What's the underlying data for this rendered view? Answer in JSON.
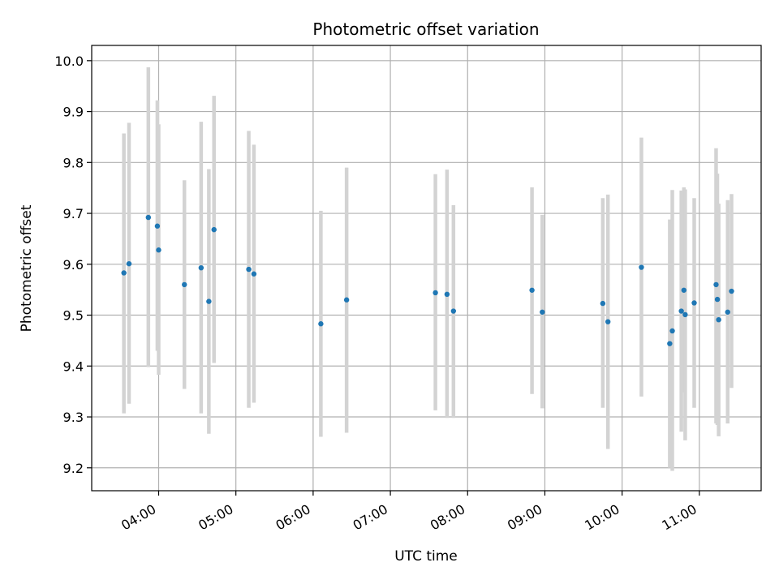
{
  "chart_data": {
    "type": "scatter",
    "title": "Photometric offset variation",
    "xlabel": "UTC time",
    "ylabel": "Photometric offset",
    "xlim": [
      "03:08",
      "11:48"
    ],
    "ylim": [
      9.155,
      10.03
    ],
    "x_ticks": [
      "04:00",
      "05:00",
      "06:00",
      "07:00",
      "08:00",
      "09:00",
      "10:00",
      "11:00"
    ],
    "y_ticks": [
      "9.2",
      "9.3",
      "9.4",
      "9.5",
      "9.6",
      "9.7",
      "9.8",
      "9.9",
      "10.0"
    ],
    "grid": true,
    "colors": {
      "point": "#1f77b4",
      "errorbar": "#d3d3d3",
      "grid": "#b0b0b0"
    },
    "points": [
      {
        "x": "03:33",
        "y": 9.583,
        "y_low": 9.307,
        "y_high": 9.857
      },
      {
        "x": "03:37",
        "y": 9.601,
        "y_low": 9.326,
        "y_high": 9.878
      },
      {
        "x": "03:52",
        "y": 9.692,
        "y_low": 9.398,
        "y_high": 9.987
      },
      {
        "x": "03:59",
        "y": 9.675,
        "y_low": 9.43,
        "y_high": 9.922
      },
      {
        "x": "04:00",
        "y": 9.628,
        "y_low": 9.383,
        "y_high": 9.875
      },
      {
        "x": "04:20",
        "y": 9.56,
        "y_low": 9.355,
        "y_high": 9.765
      },
      {
        "x": "04:33",
        "y": 9.593,
        "y_low": 9.307,
        "y_high": 9.88
      },
      {
        "x": "04:39",
        "y": 9.527,
        "y_low": 9.267,
        "y_high": 9.787
      },
      {
        "x": "04:43",
        "y": 9.668,
        "y_low": 9.406,
        "y_high": 9.931
      },
      {
        "x": "05:10",
        "y": 9.59,
        "y_low": 9.318,
        "y_high": 9.862
      },
      {
        "x": "05:14",
        "y": 9.581,
        "y_low": 9.328,
        "y_high": 9.835
      },
      {
        "x": "06:06",
        "y": 9.483,
        "y_low": 9.261,
        "y_high": 9.705
      },
      {
        "x": "06:26",
        "y": 9.53,
        "y_low": 9.269,
        "y_high": 9.79
      },
      {
        "x": "07:35",
        "y": 9.544,
        "y_low": 9.313,
        "y_high": 9.777
      },
      {
        "x": "07:44",
        "y": 9.541,
        "y_low": 9.298,
        "y_high": 9.786
      },
      {
        "x": "07:49",
        "y": 9.508,
        "y_low": 9.298,
        "y_high": 9.716
      },
      {
        "x": "08:50",
        "y": 9.549,
        "y_low": 9.345,
        "y_high": 9.751
      },
      {
        "x": "08:58",
        "y": 9.506,
        "y_low": 9.317,
        "y_high": 9.697
      },
      {
        "x": "09:45",
        "y": 9.523,
        "y_low": 9.318,
        "y_high": 9.73
      },
      {
        "x": "09:49",
        "y": 9.487,
        "y_low": 9.237,
        "y_high": 9.737
      },
      {
        "x": "10:15",
        "y": 9.594,
        "y_low": 9.34,
        "y_high": 9.849
      },
      {
        "x": "10:37",
        "y": 9.444,
        "y_low": 9.2,
        "y_high": 9.688
      },
      {
        "x": "10:39",
        "y": 9.469,
        "y_low": 9.194,
        "y_high": 9.746
      },
      {
        "x": "10:46",
        "y": 9.508,
        "y_low": 9.271,
        "y_high": 9.745
      },
      {
        "x": "10:48",
        "y": 9.549,
        "y_low": 9.348,
        "y_high": 9.751
      },
      {
        "x": "10:49",
        "y": 9.501,
        "y_low": 9.254,
        "y_high": 9.747
      },
      {
        "x": "10:56",
        "y": 9.524,
        "y_low": 9.318,
        "y_high": 9.73
      },
      {
        "x": "11:13",
        "y": 9.56,
        "y_low": 9.287,
        "y_high": 9.828
      },
      {
        "x": "11:14",
        "y": 9.531,
        "y_low": 9.284,
        "y_high": 9.778
      },
      {
        "x": "11:15",
        "y": 9.491,
        "y_low": 9.262,
        "y_high": 9.719
      },
      {
        "x": "11:22",
        "y": 9.506,
        "y_low": 9.287,
        "y_high": 9.726
      },
      {
        "x": "11:25",
        "y": 9.547,
        "y_low": 9.357,
        "y_high": 9.738
      }
    ]
  }
}
